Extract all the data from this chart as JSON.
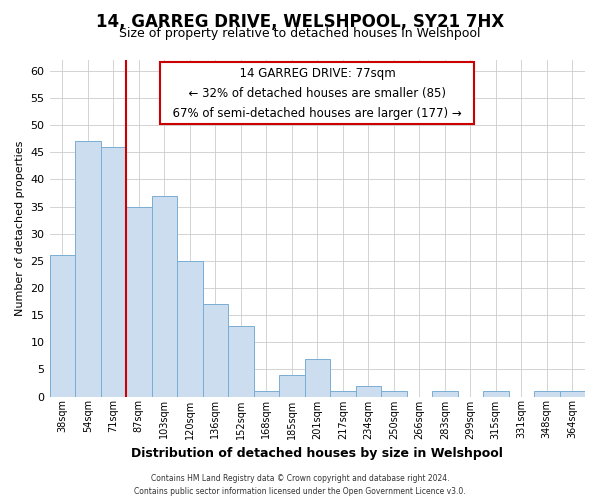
{
  "title": "14, GARREG DRIVE, WELSHPOOL, SY21 7HX",
  "subtitle": "Size of property relative to detached houses in Welshpool",
  "xlabel": "Distribution of detached houses by size in Welshpool",
  "ylabel": "Number of detached properties",
  "bar_labels": [
    "38sqm",
    "54sqm",
    "71sqm",
    "87sqm",
    "103sqm",
    "120sqm",
    "136sqm",
    "152sqm",
    "168sqm",
    "185sqm",
    "201sqm",
    "217sqm",
    "234sqm",
    "250sqm",
    "266sqm",
    "283sqm",
    "299sqm",
    "315sqm",
    "331sqm",
    "348sqm",
    "364sqm"
  ],
  "bar_values": [
    26,
    47,
    46,
    35,
    37,
    25,
    17,
    13,
    1,
    4,
    7,
    1,
    2,
    1,
    0,
    1,
    0,
    1,
    0,
    1,
    1
  ],
  "bar_color": "#ccddf0",
  "bar_edge_color": "#7aaed4",
  "highlight_line_color": "#cc0000",
  "ylim": [
    0,
    62
  ],
  "yticks": [
    0,
    5,
    10,
    15,
    20,
    25,
    30,
    35,
    40,
    45,
    50,
    55,
    60
  ],
  "annotation_title": "14 GARREG DRIVE: 77sqm",
  "annotation_line1": "← 32% of detached houses are smaller (85)",
  "annotation_line2": "67% of semi-detached houses are larger (177) →",
  "annotation_box_color": "#ffffff",
  "annotation_box_edge": "#cc0000",
  "footer1": "Contains HM Land Registry data © Crown copyright and database right 2024.",
  "footer2": "Contains public sector information licensed under the Open Government Licence v3.0.",
  "grid_color": "#cccccc",
  "background_color": "#ffffff",
  "title_fontsize": 12,
  "subtitle_fontsize": 9,
  "ylabel_fontsize": 8,
  "xlabel_fontsize": 9,
  "highlight_bar_index": 2
}
